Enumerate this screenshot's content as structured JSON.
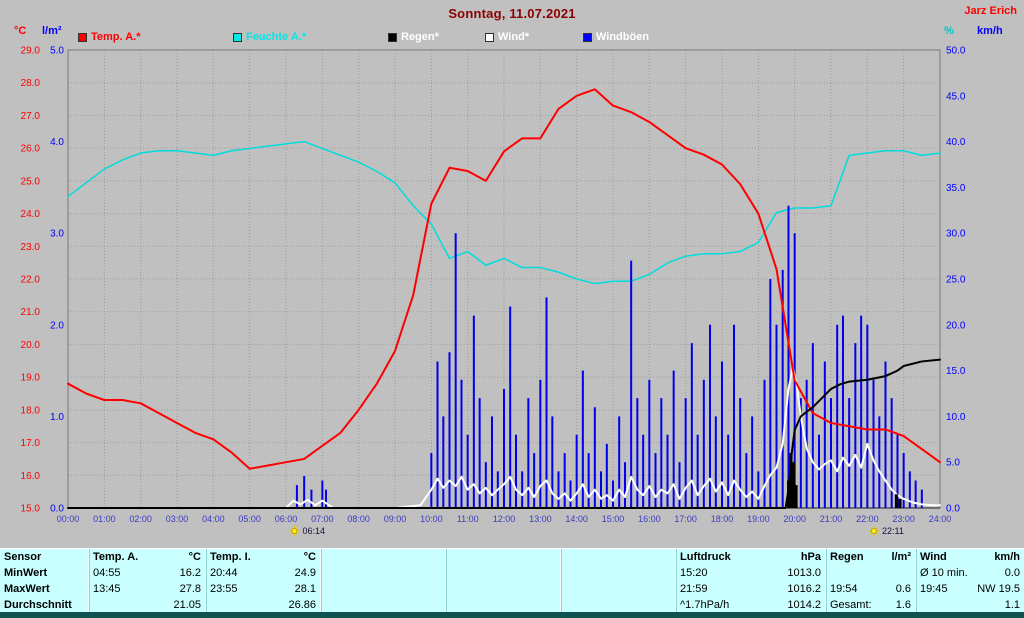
{
  "header": {
    "title": "Sonntag, 11.07.2021",
    "title_color": "#8b0000",
    "station": "Jarz Erich",
    "station_color": "#ff0000"
  },
  "legend": [
    {
      "label": "Temp. A.*",
      "color": "#ff0000",
      "text_color": "#ff0000"
    },
    {
      "label": "Feuchte A.*",
      "color": "#00e8e8",
      "text_color": "#00e8e8"
    },
    {
      "label": "Regen*",
      "color": "#000000",
      "text_color": "#ffffff"
    },
    {
      "label": "Wind*",
      "color": "#ffffff",
      "text_color": "#ffffff"
    },
    {
      "label": "Windböen",
      "color": "#0000ff",
      "text_color": "#ffffff"
    }
  ],
  "axes": {
    "temp": {
      "unit": "°C",
      "min": 15,
      "max": 29,
      "step": 1,
      "color": "#ff0000"
    },
    "rain": {
      "unit": "l/m²",
      "min": 0,
      "max": 5,
      "step": 1,
      "color": "#0000ff"
    },
    "humidity": {
      "unit": "%",
      "min": 0,
      "max": 100,
      "color": "#00c8c8"
    },
    "wind": {
      "unit": "km/h",
      "min": 0,
      "max": 50,
      "step": 5,
      "color": "#0000ff"
    },
    "time": {
      "start": 0,
      "end": 24,
      "step": 1,
      "label_color": "#3a3ac0"
    }
  },
  "sun_markers": [
    {
      "label": "06:14",
      "hour": 6.233
    },
    {
      "label": "22:11",
      "hour": 22.183
    }
  ],
  "chart_data": {
    "type": "line",
    "title": "Sonntag, 11.07.2021",
    "x_unit": "hour",
    "x_range": [
      0,
      24
    ],
    "grid": true,
    "series": [
      {
        "id": "feuchte_a",
        "name": "Feuchte A.",
        "axis": "humidity",
        "color": "#00dcdc",
        "width": 1.5,
        "draw": "line",
        "x_start": 0,
        "x_step": 0.5,
        "values": [
          68,
          71,
          74,
          76,
          77.5,
          78,
          78,
          77.5,
          77,
          78,
          78.5,
          79,
          79.5,
          80,
          78.5,
          77,
          75.5,
          73.5,
          71,
          66,
          62,
          54.5,
          56,
          53,
          54.5,
          52.5,
          52.5,
          51.5,
          50,
          49,
          49.5,
          49.5,
          51,
          53.5,
          55,
          55.5,
          55.5,
          56,
          58,
          64.5,
          65.5,
          65.5,
          66,
          77,
          77.5,
          78,
          78,
          77,
          77.5
        ]
      },
      {
        "id": "windboeen",
        "name": "Windböen",
        "axis": "wind",
        "color": "#0000ee",
        "width": 2,
        "draw": "bars",
        "points": [
          [
            6.3,
            2.5
          ],
          [
            6.5,
            3.5
          ],
          [
            6.7,
            2
          ],
          [
            7,
            3
          ],
          [
            7.1,
            2
          ],
          [
            10,
            6
          ],
          [
            10.17,
            16
          ],
          [
            10.33,
            10
          ],
          [
            10.5,
            17
          ],
          [
            10.67,
            30
          ],
          [
            10.83,
            14
          ],
          [
            11,
            8
          ],
          [
            11.17,
            21
          ],
          [
            11.33,
            12
          ],
          [
            11.5,
            5
          ],
          [
            11.67,
            10
          ],
          [
            11.83,
            4
          ],
          [
            12,
            13
          ],
          [
            12.17,
            22
          ],
          [
            12.33,
            8
          ],
          [
            12.5,
            4
          ],
          [
            12.67,
            12
          ],
          [
            12.83,
            6
          ],
          [
            13,
            14
          ],
          [
            13.17,
            23
          ],
          [
            13.33,
            10
          ],
          [
            13.5,
            4
          ],
          [
            13.67,
            6
          ],
          [
            13.83,
            3
          ],
          [
            14,
            8
          ],
          [
            14.17,
            15
          ],
          [
            14.33,
            6
          ],
          [
            14.5,
            11
          ],
          [
            14.67,
            4
          ],
          [
            14.83,
            7
          ],
          [
            15,
            3
          ],
          [
            15.17,
            10
          ],
          [
            15.33,
            5
          ],
          [
            15.5,
            27
          ],
          [
            15.67,
            12
          ],
          [
            15.83,
            8
          ],
          [
            16,
            14
          ],
          [
            16.17,
            6
          ],
          [
            16.33,
            12
          ],
          [
            16.5,
            8
          ],
          [
            16.67,
            15
          ],
          [
            16.83,
            5
          ],
          [
            17,
            12
          ],
          [
            17.17,
            18
          ],
          [
            17.33,
            8
          ],
          [
            17.5,
            14
          ],
          [
            17.67,
            20
          ],
          [
            17.83,
            10
          ],
          [
            18,
            16
          ],
          [
            18.17,
            8
          ],
          [
            18.33,
            20
          ],
          [
            18.5,
            12
          ],
          [
            18.67,
            6
          ],
          [
            18.83,
            10
          ],
          [
            19,
            4
          ],
          [
            19.17,
            14
          ],
          [
            19.33,
            25
          ],
          [
            19.5,
            20
          ],
          [
            19.67,
            26
          ],
          [
            19.83,
            33
          ],
          [
            20,
            30
          ],
          [
            20.17,
            12
          ],
          [
            20.33,
            14
          ],
          [
            20.5,
            18
          ],
          [
            20.67,
            8
          ],
          [
            20.83,
            16
          ],
          [
            21,
            12
          ],
          [
            21.17,
            20
          ],
          [
            21.33,
            21
          ],
          [
            21.5,
            12
          ],
          [
            21.67,
            18
          ],
          [
            21.83,
            21
          ],
          [
            22,
            20
          ],
          [
            22.17,
            14
          ],
          [
            22.33,
            10
          ],
          [
            22.5,
            16
          ],
          [
            22.67,
            12
          ],
          [
            22.83,
            8
          ],
          [
            23,
            6
          ],
          [
            23.17,
            4
          ],
          [
            23.33,
            3
          ],
          [
            23.5,
            2
          ]
        ]
      },
      {
        "id": "wind",
        "name": "Wind",
        "axis": "wind",
        "color": "#ffffff",
        "width": 2,
        "draw": "line",
        "x": [
          0,
          2,
          4,
          6,
          6.2,
          6.4,
          6.6,
          6.8,
          7,
          7.3,
          8,
          9,
          9.7,
          10,
          10.17,
          10.33,
          10.5,
          10.67,
          10.83,
          11,
          11.17,
          11.33,
          11.5,
          11.67,
          11.83,
          12,
          12.17,
          12.33,
          12.5,
          12.67,
          12.83,
          13,
          13.17,
          13.33,
          13.5,
          13.67,
          13.83,
          14,
          14.17,
          14.33,
          14.5,
          14.67,
          14.83,
          15,
          15.17,
          15.33,
          15.5,
          15.67,
          15.83,
          16,
          16.17,
          16.33,
          16.5,
          16.67,
          16.83,
          17,
          17.17,
          17.33,
          17.5,
          17.67,
          17.83,
          18,
          18.17,
          18.33,
          18.5,
          18.67,
          18.83,
          19,
          19.17,
          19.33,
          19.5,
          19.67,
          19.83,
          19.95,
          20.05,
          20.17,
          20.33,
          20.5,
          20.67,
          20.83,
          21,
          21.17,
          21.33,
          21.5,
          21.67,
          21.83,
          22,
          22.17,
          22.33,
          22.5,
          22.67,
          22.83,
          23,
          23.25,
          23.5,
          23.75,
          24
        ],
        "values": [
          0,
          0,
          0,
          0,
          0.8,
          0.4,
          0.9,
          0.3,
          0.8,
          0,
          0,
          0,
          0.3,
          2,
          3.2,
          2.2,
          3,
          2.4,
          3.4,
          2,
          2.6,
          1.6,
          2.2,
          1.4,
          2,
          2.6,
          3.4,
          2,
          1.4,
          2.2,
          1.2,
          2.4,
          3,
          1.6,
          1,
          1.6,
          0.8,
          1.6,
          2.6,
          1.2,
          2,
          1,
          1.4,
          0.8,
          2,
          1.2,
          3.4,
          2,
          1.4,
          2.4,
          1.2,
          2,
          1.6,
          2.6,
          1,
          2.2,
          3,
          1.4,
          2.4,
          3.2,
          1.8,
          2.8,
          1.4,
          3,
          2,
          1.2,
          1.8,
          1,
          2.4,
          3.6,
          4.4,
          7,
          13,
          15.3,
          13.5,
          10,
          6.5,
          5,
          4.2,
          4.8,
          5.2,
          4,
          5.5,
          4.6,
          5.8,
          4.4,
          7,
          5.2,
          4,
          3,
          2,
          1.4,
          1,
          0.6,
          0.4,
          0.3,
          0.3
        ]
      },
      {
        "id": "temp_a",
        "name": "Temp. A.",
        "axis": "temp",
        "color": "#ff0000",
        "width": 2,
        "draw": "line",
        "x_start": 0,
        "x_step": 0.5,
        "values": [
          18.8,
          18.5,
          18.3,
          18.3,
          18.2,
          17.9,
          17.6,
          17.3,
          17.1,
          16.7,
          16.2,
          16.3,
          16.4,
          16.5,
          16.9,
          17.3,
          18.0,
          18.8,
          19.8,
          21.5,
          24.3,
          25.4,
          25.3,
          25.0,
          25.9,
          26.3,
          26.3,
          27.2,
          27.6,
          27.8,
          27.3,
          27.1,
          26.8,
          26.4,
          26.0,
          25.8,
          25.5,
          24.9,
          24.0,
          22.3,
          18.9,
          17.9,
          17.6,
          17.5,
          17.4,
          17.4,
          17.2,
          16.8,
          16.4
        ]
      },
      {
        "id": "regen_rate",
        "name": "Regen Rate",
        "axis": "rain",
        "color": "#000000",
        "width": 3,
        "draw": "bars",
        "points": [
          [
            19.83,
            0.3
          ],
          [
            19.9,
            0.6
          ],
          [
            19.97,
            0.5
          ],
          [
            20.04,
            0.25
          ],
          [
            22.8,
            0.15
          ],
          [
            22.9,
            0.1
          ]
        ]
      },
      {
        "id": "regen_summe",
        "name": "Regen Summe",
        "axis": "rain",
        "color": "#000000",
        "width": 2,
        "draw": "line",
        "points": [
          [
            0,
            0
          ],
          [
            19.75,
            0
          ],
          [
            19.83,
            0.2
          ],
          [
            19.92,
            0.6
          ],
          [
            20,
            0.85
          ],
          [
            20.17,
            1.0
          ],
          [
            20.33,
            1.05
          ],
          [
            20.5,
            1.1
          ],
          [
            20.75,
            1.2
          ],
          [
            21,
            1.3
          ],
          [
            21.25,
            1.35
          ],
          [
            21.5,
            1.38
          ],
          [
            22,
            1.4
          ],
          [
            22.5,
            1.44
          ],
          [
            22.83,
            1.5
          ],
          [
            23,
            1.55
          ],
          [
            23.5,
            1.6
          ],
          [
            24,
            1.62
          ]
        ]
      }
    ]
  },
  "summary_table": {
    "rows": [
      {
        "cells": [
          "Sensor",
          "Temp. A.",
          "°C",
          "Temp. I.",
          "°C",
          "",
          "",
          "",
          "Luftdruck",
          "hPa",
          "Regen",
          "l/m²",
          "Wind",
          "km/h"
        ]
      },
      {
        "cells": [
          "MinWert",
          "04:55",
          "16.2",
          "20:44",
          "24.9",
          "",
          "",
          "",
          "15:20",
          "1013.0",
          "",
          "",
          "Ø 10 min.",
          "0.0"
        ]
      },
      {
        "cells": [
          "MaxWert",
          "13:45",
          "27.8",
          "23:55",
          "28.1",
          "",
          "",
          "",
          "21:59",
          "1016.2",
          "19:54",
          "0.6",
          "19:45",
          "NW 19.5"
        ]
      },
      {
        "cells": [
          "Durchschnitt",
          "",
          "21.05",
          "",
          "26.86",
          "",
          "",
          "",
          "^1.7hPa/h",
          "1014.2",
          "Gesamt:",
          "1.6",
          "",
          "1.1"
        ]
      }
    ]
  }
}
